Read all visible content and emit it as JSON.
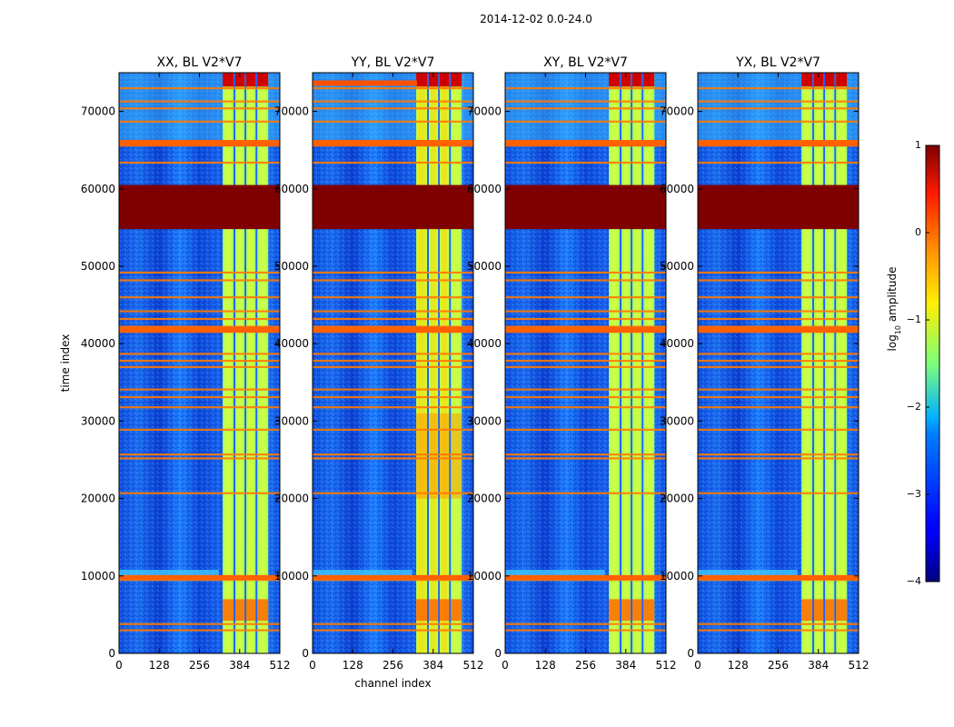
{
  "figure": {
    "suptitle": "2014-12-02 0.0-24.0"
  },
  "chart_data": [
    {
      "type": "heatmap",
      "title": "XX, BL V2*V7",
      "xlabel": "",
      "ylabel": "time index",
      "xlim": [
        0,
        512
      ],
      "ylim": [
        0,
        75000
      ],
      "xticks": [
        "0",
        "128",
        "256",
        "384",
        "512"
      ],
      "yticks": [
        "0",
        "10000",
        "20000",
        "30000",
        "40000",
        "50000",
        "60000",
        "70000"
      ]
    },
    {
      "type": "heatmap",
      "title": "YY, BL V2*V7",
      "xlabel": "channel index",
      "ylabel": "",
      "xlim": [
        0,
        512
      ],
      "ylim": [
        0,
        75000
      ],
      "xticks": [
        "0",
        "128",
        "256",
        "384",
        "512"
      ],
      "yticks": [
        "0",
        "10000",
        "20000",
        "30000",
        "40000",
        "50000",
        "60000",
        "70000"
      ]
    },
    {
      "type": "heatmap",
      "title": "XY, BL V2*V7",
      "xlabel": "",
      "ylabel": "",
      "xlim": [
        0,
        512
      ],
      "ylim": [
        0,
        75000
      ],
      "xticks": [
        "0",
        "128",
        "256",
        "384",
        "512"
      ],
      "yticks": [
        "0",
        "10000",
        "20000",
        "30000",
        "40000",
        "50000",
        "60000",
        "70000"
      ]
    },
    {
      "type": "heatmap",
      "title": "YX, BL V2*V7",
      "xlabel": "",
      "ylabel": "",
      "xlim": [
        0,
        512
      ],
      "ylim": [
        0,
        75000
      ],
      "xticks": [
        "0",
        "128",
        "256",
        "384",
        "512"
      ],
      "yticks": [
        "0",
        "10000",
        "20000",
        "30000",
        "40000",
        "50000",
        "60000",
        "70000"
      ]
    }
  ],
  "colorbar": {
    "label": "log10 amplitude",
    "range": [
      -4,
      1
    ],
    "ticks": [
      "1",
      "0",
      "−1",
      "−2",
      "−3",
      "−4"
    ],
    "colormap": "jet"
  },
  "features": {
    "saturated_block_time": [
      54800,
      60500
    ],
    "bright_channel_range": [
      330,
      475
    ],
    "strip_channels": [
      [
        330,
        365
      ],
      [
        370,
        400
      ],
      [
        405,
        435
      ],
      [
        440,
        475
      ]
    ],
    "horizontal_lines_time": [
      3000,
      3800,
      9500,
      10000,
      20700,
      25200,
      25700,
      28900,
      31800,
      33100,
      34100,
      37000,
      37800,
      38700,
      41600,
      42200,
      43200,
      44200,
      46000,
      48200,
      49200,
      63400,
      65600,
      66200,
      68700,
      70400,
      71300,
      73000
    ]
  }
}
